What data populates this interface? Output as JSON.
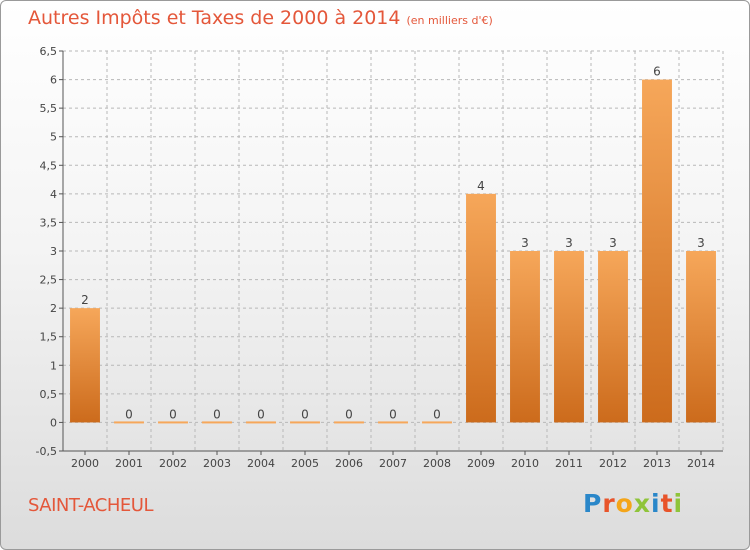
{
  "header": {
    "title": "Autres Impôts et Taxes de 2000 à 2014",
    "unit": "(en milliers d'€)"
  },
  "footer": {
    "commune": "SAINT-ACHEUL",
    "logo_letters": [
      "P",
      "r",
      "o",
      "x",
      "i",
      "t",
      "i"
    ],
    "logo_text": "Proxiti"
  },
  "colors": {
    "title": "#e4573a",
    "bar_light": "#f6a75a",
    "bar_dark": "#cc6b1c",
    "axis": "#555555",
    "grid": "#b8b8b8"
  },
  "chart_data": {
    "type": "bar",
    "title": "Autres Impôts et Taxes de 2000 à 2014",
    "xlabel": "",
    "ylabel": "",
    "categories": [
      "2000",
      "2001",
      "2002",
      "2003",
      "2004",
      "2005",
      "2006",
      "2007",
      "2008",
      "2009",
      "2010",
      "2011",
      "2012",
      "2013",
      "2014"
    ],
    "values": [
      2,
      0,
      0,
      0,
      0,
      0,
      0,
      0,
      0,
      4,
      3,
      3,
      3,
      6,
      3
    ],
    "data_labels": [
      "2",
      "0",
      "0",
      "0",
      "0",
      "0",
      "0",
      "0",
      "0",
      "4",
      "3",
      "3",
      "3",
      "6",
      "3"
    ],
    "ylim": [
      -0.5,
      6.5
    ],
    "yticks": [
      -0.5,
      0,
      0.5,
      1,
      1.5,
      2,
      2.5,
      3,
      3.5,
      4,
      4.5,
      5,
      5.5,
      6,
      6.5
    ],
    "ytick_labels": [
      "-0,5",
      "0",
      "0,5",
      "1",
      "1,5",
      "2",
      "2,5",
      "3",
      "3,5",
      "4",
      "4,5",
      "5",
      "5,5",
      "6",
      "6,5"
    ],
    "grid": "horizontal dashed",
    "legend": "none"
  }
}
